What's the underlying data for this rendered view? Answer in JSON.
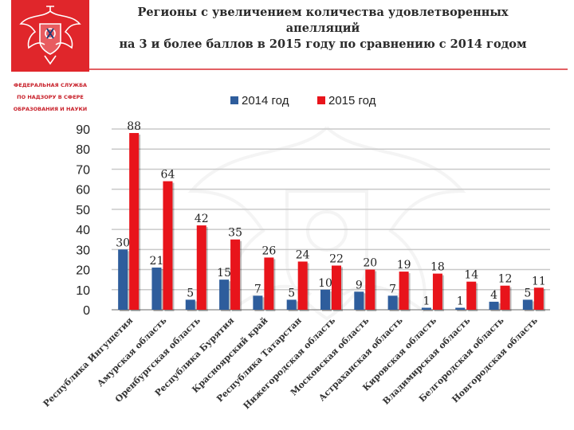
{
  "header": {
    "title_line1": "Регионы с увеличением количества удовлетворенных апелляций",
    "title_line2": "на 3 и более баллов в 2015 году по сравнению с 2014 годом"
  },
  "sidebar": {
    "agency_line1": "ФЕДЕРАЛЬНАЯ СЛУЖБА",
    "agency_line2": "ПО НАДЗОРУ В СФЕРЕ",
    "agency_line3": "ОБРАЗОВАНИЯ И НАУКИ",
    "emblem_icon": "double-headed-eagle-emblem-icon"
  },
  "colors": {
    "series_2014": "#2e5d9c",
    "series_2015": "#e8141b",
    "accent": "#e0262b"
  },
  "chart_data": {
    "type": "bar",
    "categories": [
      "Республика Ингушетия",
      "Амурская область",
      "Оренбургская область",
      "Республика Бурятия",
      "Красноярский край",
      "Республика Татарстан",
      "Нижегородская область",
      "Московская область",
      "Астраханская область",
      "Кировская область",
      "Владимирская область",
      "Белгородская область",
      "Новгородская область"
    ],
    "series": [
      {
        "name": "2014 год",
        "values": [
          30,
          21,
          5,
          15,
          7,
          5,
          10,
          9,
          7,
          1,
          1,
          4,
          5
        ]
      },
      {
        "name": "2015 год",
        "values": [
          88,
          64,
          42,
          35,
          26,
          24,
          22,
          20,
          19,
          18,
          14,
          12,
          11
        ]
      }
    ],
    "ylim": [
      0,
      90
    ],
    "yticks": [
      0,
      10,
      20,
      30,
      40,
      50,
      60,
      70,
      80,
      90
    ],
    "grid": true,
    "legend_position": "top",
    "data_labels": true
  }
}
